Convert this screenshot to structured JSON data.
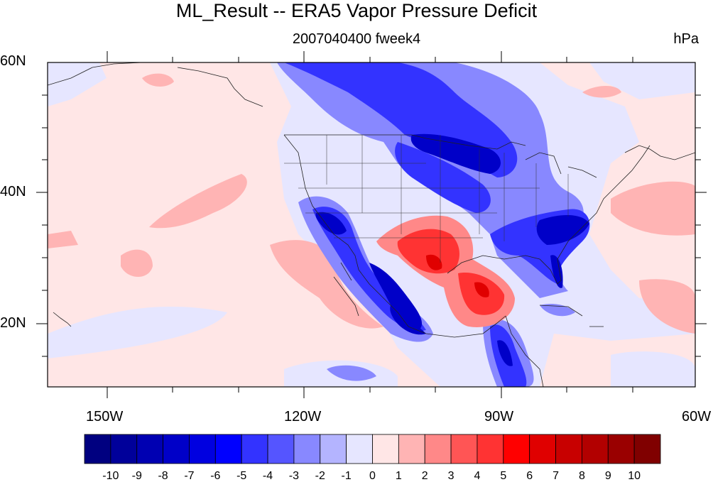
{
  "title": "ML_Result -- ERA5 Vapor Pressure Deficit",
  "subtitle": "2007040400 fweek4",
  "units": "hPa",
  "lat_labels": [
    "60N",
    "40N",
    "20N"
  ],
  "lon_labels": [
    "150W",
    "120W",
    "90W",
    "60W"
  ],
  "colorbar": {
    "ticks": [
      "-10",
      "-9",
      "-8",
      "-7",
      "-6",
      "-5",
      "-4",
      "-3",
      "-2",
      "-1",
      "0",
      "1",
      "2",
      "3",
      "4",
      "5",
      "6",
      "7",
      "8",
      "9",
      "10"
    ],
    "colors": [
      "#000080",
      "#00009a",
      "#0000b2",
      "#0000c8",
      "#0000e0",
      "#0000ff",
      "#3333ff",
      "#5555ff",
      "#8888ff",
      "#b4b4ff",
      "#e6e6ff",
      "#ffe6e6",
      "#ffb4b4",
      "#ff8888",
      "#ff5555",
      "#ff3333",
      "#ff0000",
      "#e00000",
      "#c80000",
      "#b20000",
      "#9a0000",
      "#800000"
    ]
  },
  "map": {
    "extent": {
      "lon": [
        -159,
        -60
      ],
      "lat": [
        10,
        60
      ]
    },
    "fill_color": "#ffe6e6"
  }
}
